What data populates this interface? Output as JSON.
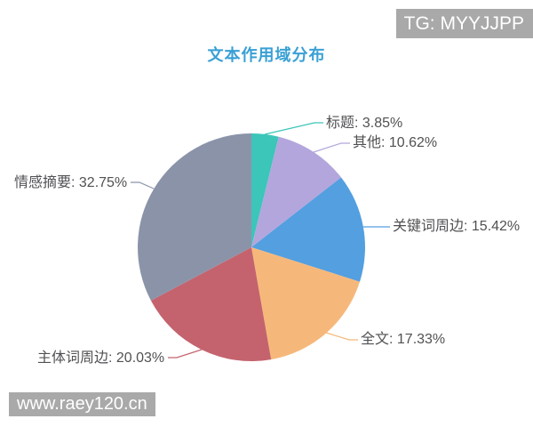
{
  "watermarks": {
    "top_right": "TG: MYYJJPP",
    "bottom_left": "www.raey120.cn"
  },
  "chart_data": {
    "type": "pie",
    "title": "文本作用域分布",
    "title_color": "#39a0d5",
    "start_angle": "12-o-clock",
    "direction": "clockwise",
    "legend": "none",
    "label_style": "outside-with-leader-lines",
    "categories": [
      "标题",
      "其他",
      "关键词周边",
      "全文",
      "主体词周边",
      "情感摘要"
    ],
    "values": [
      3.85,
      10.62,
      15.42,
      17.33,
      20.03,
      32.75
    ],
    "slices": [
      {
        "id": "title",
        "name": "标题",
        "value": 3.85,
        "label": "标题: 3.85%",
        "color": "#3cc5b9"
      },
      {
        "id": "other",
        "name": "其他",
        "value": 10.62,
        "label": "其他: 10.62%",
        "color": "#b3a6dc"
      },
      {
        "id": "keyword-context",
        "name": "关键词周边",
        "value": 15.42,
        "label": "关键词周边: 15.42%",
        "color": "#539fe0"
      },
      {
        "id": "full-text",
        "name": "全文",
        "value": 17.33,
        "label": "全文: 17.33%",
        "color": "#f6b87a"
      },
      {
        "id": "subject-context",
        "name": "主体词周边",
        "value": 20.03,
        "label": "主体词周边: 20.03%",
        "color": "#c4636e"
      },
      {
        "id": "sentiment-summary",
        "name": "情感摘要",
        "value": 32.75,
        "label": "情感摘要: 32.75%",
        "color": "#8b93a9"
      }
    ]
  }
}
